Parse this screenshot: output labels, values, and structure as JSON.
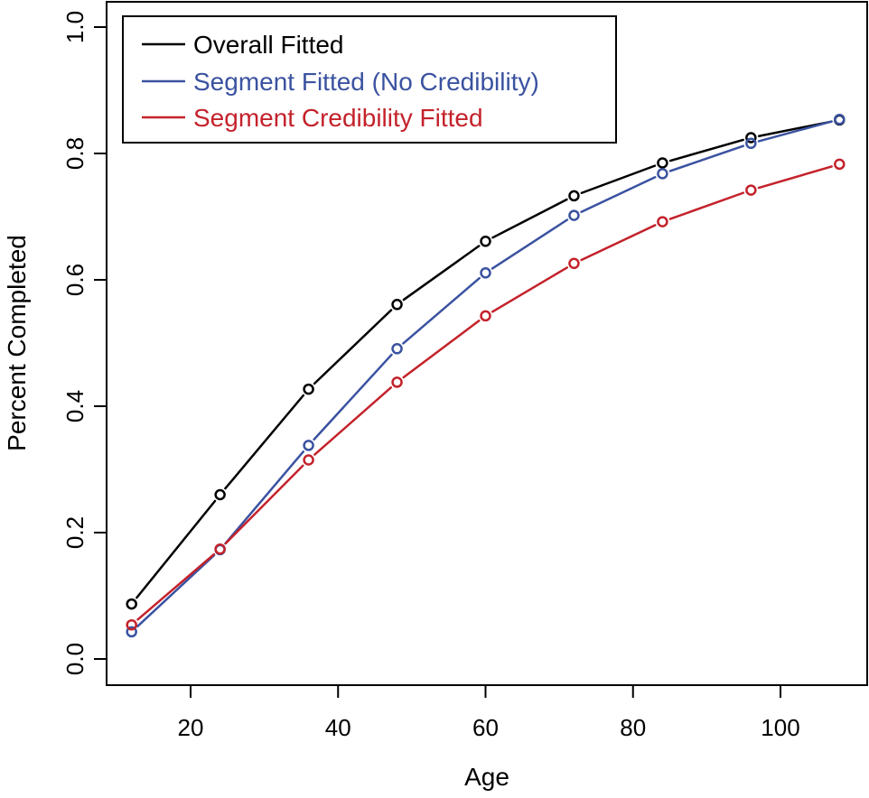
{
  "chart_data": {
    "type": "line",
    "title": "",
    "xlabel": "Age",
    "ylabel": "Percent Completed",
    "xlim": [
      10,
      110
    ],
    "ylim": [
      0,
      1
    ],
    "x_ticks": [
      20,
      40,
      60,
      80,
      100
    ],
    "y_ticks": [
      0.0,
      0.2,
      0.4,
      0.6,
      0.8,
      1.0
    ],
    "x_tick_labels": [
      "20",
      "40",
      "60",
      "80",
      "100"
    ],
    "y_tick_labels": [
      "0.0",
      "0.2",
      "0.4",
      "0.6",
      "0.8",
      "1.0"
    ],
    "grid": false,
    "legend_position": "top-left",
    "x": [
      12,
      24,
      36,
      48,
      60,
      72,
      84,
      96,
      108
    ],
    "series": [
      {
        "name": "Overall Fitted",
        "color": "#000000",
        "values": [
          0.087,
          0.26,
          0.427,
          0.561,
          0.661,
          0.733,
          0.785,
          0.825,
          0.853
        ]
      },
      {
        "name": "Segment Fitted (No Credibility)",
        "color": "#3a52a0",
        "values": [
          0.043,
          0.173,
          0.338,
          0.491,
          0.611,
          0.702,
          0.768,
          0.816,
          0.854
        ]
      },
      {
        "name": "Segment Credibility Fitted",
        "color": "#c4222b",
        "values": [
          0.054,
          0.174,
          0.315,
          0.438,
          0.543,
          0.626,
          0.692,
          0.742,
          0.783
        ]
      }
    ]
  }
}
